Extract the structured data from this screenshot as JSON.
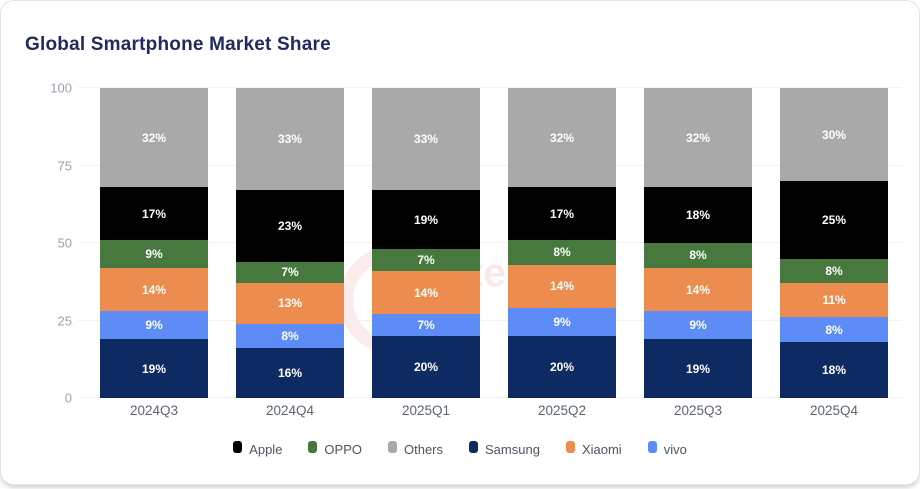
{
  "title": "Global Smartphone Market Share",
  "chart_data": {
    "type": "bar",
    "stacked": true,
    "title": "Global Smartphone Market Share",
    "categories": [
      "2024Q3",
      "2024Q4",
      "2025Q1",
      "2025Q2",
      "2025Q3",
      "2025Q4"
    ],
    "series": [
      {
        "name": "Samsung",
        "color": "#0d2a63",
        "values": [
          19,
          16,
          20,
          20,
          19,
          18
        ]
      },
      {
        "name": "vivo",
        "color": "#5e8cf7",
        "values": [
          9,
          8,
          7,
          9,
          9,
          8
        ]
      },
      {
        "name": "Xiaomi",
        "color": "#ec8c4f",
        "values": [
          14,
          13,
          14,
          14,
          14,
          11
        ]
      },
      {
        "name": "OPPO",
        "color": "#47793f",
        "values": [
          9,
          7,
          7,
          8,
          8,
          8
        ]
      },
      {
        "name": "Apple",
        "color": "#000000",
        "values": [
          17,
          23,
          19,
          17,
          18,
          25
        ]
      },
      {
        "name": "Others",
        "color": "#a9a9a9",
        "values": [
          32,
          33,
          33,
          32,
          32,
          30
        ]
      }
    ],
    "stack_order": "bottom-to-top",
    "value_suffix": "%",
    "value_labels": true,
    "y_ticks": [
      0,
      25,
      50,
      75,
      100
    ],
    "ylim": [
      0,
      100
    ],
    "grid": true,
    "legend_position": "bottom",
    "legend_order": [
      "Apple",
      "OPPO",
      "Others",
      "Samsung",
      "Xiaomi",
      "vivo"
    ]
  },
  "watermark": {
    "text_fragment": "ter",
    "color": "#f6e3e3"
  }
}
